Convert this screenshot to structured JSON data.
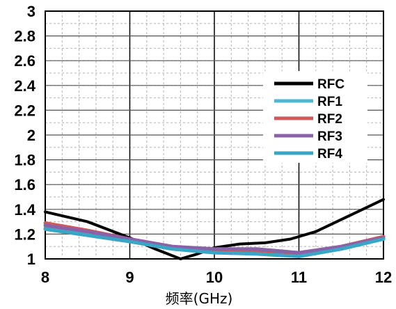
{
  "chart_data": {
    "type": "line",
    "title": "",
    "xlabel": "频率(GHz)",
    "ylabel": "",
    "xlim": [
      8,
      12
    ],
    "ylim": [
      1,
      3
    ],
    "xticks": [
      8,
      9,
      10,
      11,
      12
    ],
    "yticks": [
      1,
      1.2,
      1.4,
      1.6,
      1.8,
      2,
      2.2,
      2.4,
      2.6,
      2.8,
      3
    ],
    "ytick_labels": [
      "1",
      "1.2",
      "1.4",
      "1.6",
      "1.8",
      "2",
      "2.2",
      "2.4",
      "2.6",
      "2.8",
      "3"
    ],
    "grid": true,
    "legend_position": "top-right",
    "series": [
      {
        "name": "RFC",
        "color": "#000000",
        "x": [
          8.0,
          8.5,
          9.0,
          9.3,
          9.6,
          9.8,
          10.0,
          10.3,
          10.6,
          10.9,
          11.2,
          11.6,
          12.0
        ],
        "y": [
          1.38,
          1.3,
          1.17,
          1.08,
          1.0,
          1.04,
          1.09,
          1.12,
          1.13,
          1.16,
          1.22,
          1.35,
          1.48
        ]
      },
      {
        "name": "RF1",
        "color": "#4db8d0",
        "x": [
          8.0,
          8.5,
          9.0,
          9.5,
          10.0,
          10.5,
          11.0,
          11.5,
          12.0
        ],
        "y": [
          1.25,
          1.2,
          1.14,
          1.09,
          1.06,
          1.05,
          1.03,
          1.09,
          1.17
        ]
      },
      {
        "name": "RF2",
        "color": "#cc5a5a",
        "x": [
          8.0,
          8.5,
          9.0,
          9.5,
          10.0,
          10.5,
          11.0,
          11.5,
          12.0
        ],
        "y": [
          1.29,
          1.23,
          1.16,
          1.1,
          1.07,
          1.06,
          1.04,
          1.1,
          1.18
        ]
      },
      {
        "name": "RF3",
        "color": "#8a62a8",
        "x": [
          8.0,
          8.5,
          9.0,
          9.5,
          10.0,
          10.5,
          11.0,
          11.5,
          12.0
        ],
        "y": [
          1.27,
          1.22,
          1.16,
          1.1,
          1.08,
          1.08,
          1.05,
          1.1,
          1.17
        ]
      },
      {
        "name": "RF4",
        "color": "#3aa6c6",
        "x": [
          8.0,
          8.5,
          9.0,
          9.5,
          10.0,
          10.5,
          11.0,
          11.5,
          12.0
        ],
        "y": [
          1.24,
          1.19,
          1.14,
          1.08,
          1.05,
          1.04,
          1.02,
          1.08,
          1.16
        ]
      }
    ]
  }
}
